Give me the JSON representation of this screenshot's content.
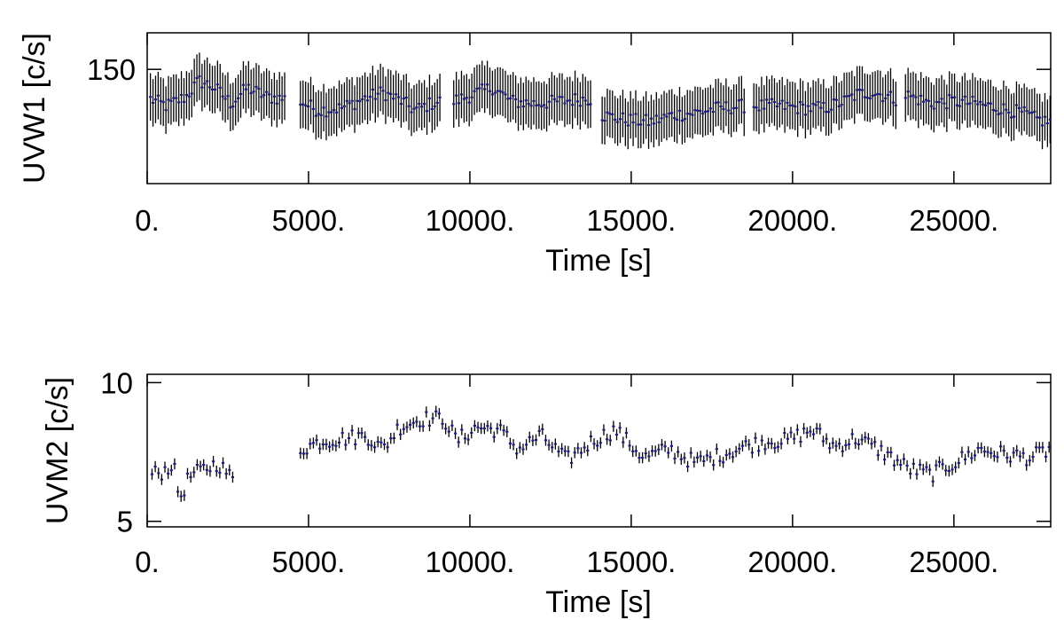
{
  "chart_data": [
    {
      "type": "scatter",
      "subtype": "error-bar light curve",
      "title": "",
      "xlabel": "Time [s]",
      "ylabel": "UVW1 [c/s]",
      "xlim": [
        0,
        28000
      ],
      "ylim": [
        125,
        158
      ],
      "xticks": [
        0,
        5000,
        10000,
        15000,
        20000,
        25000
      ],
      "xtick_labels": [
        "0.",
        "5000.",
        "10000.",
        "15000.",
        "20000.",
        "25000."
      ],
      "yticks": [
        150
      ],
      "ytick_labels": [
        "150"
      ],
      "point_color": "#1a1a80",
      "errorbar_color": "#000000",
      "series": [
        {
          "segments": [
            {
              "t_start": 100,
              "t_end": 4300,
              "levels": [
                [
                  100,
                  143.5
                ],
                [
                  600,
                  142
                ],
                [
                  1200,
                  144
                ],
                [
                  1600,
                  147.5
                ],
                [
                  2100,
                  146
                ],
                [
                  2600,
                  142.5
                ],
                [
                  3100,
                  146
                ],
                [
                  3700,
                  144
                ],
                [
                  4300,
                  143.5
                ]
              ]
            },
            {
              "t_start": 4750,
              "t_end": 9100,
              "levels": [
                [
                  4750,
                  143
                ],
                [
                  5300,
                  141
                ],
                [
                  6000,
                  141.5
                ],
                [
                  6700,
                  143.5
                ],
                [
                  7300,
                  145
                ],
                [
                  7900,
                  143
                ],
                [
                  8300,
                  141
                ],
                [
                  8800,
                  142.5
                ],
                [
                  9100,
                  143
                ]
              ]
            },
            {
              "t_start": 9500,
              "t_end": 13800,
              "levels": [
                [
                  9500,
                  143
                ],
                [
                  10100,
                  144.5
                ],
                [
                  10700,
                  146
                ],
                [
                  11300,
                  143
                ],
                [
                  12000,
                  142.5
                ],
                [
                  12800,
                  143
                ],
                [
                  13400,
                  143.5
                ],
                [
                  13800,
                  143.5
                ]
              ]
            },
            {
              "t_start": 14100,
              "t_end": 18500,
              "levels": [
                [
                  14100,
                  140
                ],
                [
                  14800,
                  139
                ],
                [
                  15600,
                  138.5
                ],
                [
                  16300,
                  140
                ],
                [
                  17000,
                  140.5
                ],
                [
                  17700,
                  141.5
                ],
                [
                  18500,
                  142
                ]
              ]
            },
            {
              "t_start": 18800,
              "t_end": 23200,
              "levels": [
                [
                  18800,
                  142
                ],
                [
                  19600,
                  142
                ],
                [
                  20400,
                  141.5
                ],
                [
                  21000,
                  141.5
                ],
                [
                  21600,
                  143
                ],
                [
                  22000,
                  144.5
                ],
                [
                  22500,
                  145
                ],
                [
                  23200,
                  143.5
                ]
              ]
            },
            {
              "t_start": 23500,
              "t_end": 28000,
              "levels": [
                [
                  23500,
                  144.5
                ],
                [
                  24300,
                  142.5
                ],
                [
                  25000,
                  143
                ],
                [
                  25700,
                  142.5
                ],
                [
                  26400,
                  141.5
                ],
                [
                  27100,
                  140.5
                ],
                [
                  27600,
                  139
                ],
                [
                  28000,
                  138.5
                ]
              ]
            }
          ],
          "spacing": 80,
          "error_half_width": 5.2,
          "scatter_amplitude": 1.5
        }
      ]
    },
    {
      "type": "scatter",
      "subtype": "error-bar light curve",
      "title": "",
      "xlabel": "Time [s]",
      "ylabel": "UVM2 [c/s]",
      "xlim": [
        0,
        28000
      ],
      "ylim": [
        4.8,
        10.3
      ],
      "xticks": [
        0,
        5000,
        10000,
        15000,
        20000,
        25000
      ],
      "xtick_labels": [
        "0.",
        "5000.",
        "10000.",
        "15000.",
        "20000.",
        "25000."
      ],
      "yticks": [
        5,
        10
      ],
      "ytick_labels": [
        "5",
        "10"
      ],
      "point_color": "#1a1a80",
      "errorbar_color": "#000000",
      "series": [
        {
          "segments": [
            {
              "t_start": 150,
              "t_end": 2650,
              "levels": [
                [
                  150,
                  6.7
                ],
                [
                  500,
                  6.8
                ],
                [
                  800,
                  7.1
                ],
                [
                  1000,
                  5.8
                ],
                [
                  1300,
                  6.6
                ],
                [
                  1800,
                  6.9
                ],
                [
                  2200,
                  7.1
                ],
                [
                  2650,
                  6.5
                ]
              ]
            },
            {
              "t_start": 4750,
              "t_end": 28000,
              "levels": [
                [
                  4750,
                  7.6
                ],
                [
                  5400,
                  7.9
                ],
                [
                  6200,
                  8.0
                ],
                [
                  6800,
                  8.1
                ],
                [
                  7300,
                  7.6
                ],
                [
                  7800,
                  8.4
                ],
                [
                  8500,
                  8.7
                ],
                [
                  9200,
                  8.7
                ],
                [
                  9600,
                  7.9
                ],
                [
                  10200,
                  8.4
                ],
                [
                  10900,
                  8.3
                ],
                [
                  11500,
                  7.6
                ],
                [
                  12200,
                  8.1
                ],
                [
                  13000,
                  7.2
                ],
                [
                  13800,
                  7.9
                ],
                [
                  14500,
                  8.3
                ],
                [
                  15400,
                  7.3
                ],
                [
                  16200,
                  7.6
                ],
                [
                  17000,
                  7.1
                ],
                [
                  17800,
                  7.4
                ],
                [
                  18500,
                  7.7
                ],
                [
                  19200,
                  7.9
                ],
                [
                  19800,
                  7.9
                ],
                [
                  20600,
                  8.3
                ],
                [
                  21300,
                  7.7
                ],
                [
                  22000,
                  8.0
                ],
                [
                  22800,
                  7.5
                ],
                [
                  23600,
                  6.9
                ],
                [
                  24300,
                  6.7
                ],
                [
                  25000,
                  7.1
                ],
                [
                  25800,
                  7.6
                ],
                [
                  26600,
                  7.4
                ],
                [
                  27400,
                  7.3
                ],
                [
                  28000,
                  7.6
                ]
              ]
            }
          ],
          "spacing": 100,
          "error_half_width": 0.2,
          "scatter_amplitude": 0.3
        }
      ]
    }
  ]
}
